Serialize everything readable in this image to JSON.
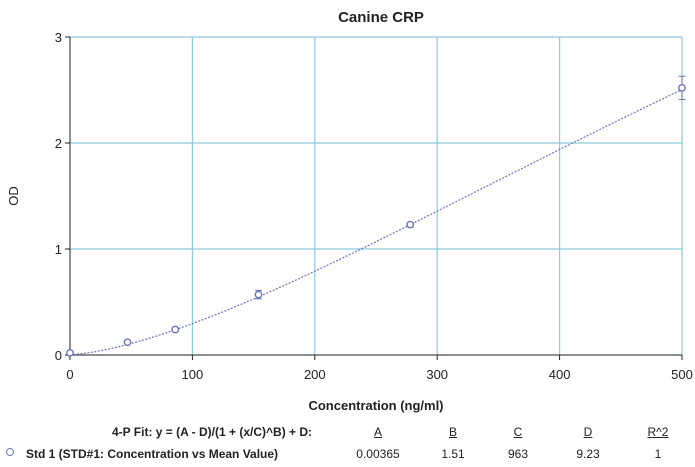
{
  "chart_data": {
    "type": "scatter",
    "title": "Canine CRP",
    "xlabel": "Concentration (ng/ml)",
    "ylabel": "OD",
    "xlim": [
      0,
      500
    ],
    "ylim": [
      0,
      3
    ],
    "x_ticks": [
      "0",
      "100",
      "200",
      "300",
      "400",
      "500"
    ],
    "y_ticks": [
      "0",
      "1",
      "2",
      "3"
    ],
    "grid": true,
    "series": [
      {
        "name": "Std 1 (STD#1: Concentration vs Mean Value)",
        "x": [
          0,
          47,
          86,
          154,
          278,
          500
        ],
        "y": [
          0.02,
          0.12,
          0.24,
          0.57,
          1.23,
          2.52
        ],
        "err": [
          0.005,
          0.01,
          0.015,
          0.04,
          0.02,
          0.11
        ],
        "color": "#6b73b8"
      }
    ],
    "fit": {
      "A": 0.00365,
      "B": 1.51,
      "C": 963,
      "D": 9.23,
      "color": "#6b73b8"
    }
  },
  "fit_table": {
    "header": "4-P Fit:  y = (A - D)/(1 + (x/C)^B) + D:",
    "col_A": "A",
    "col_B": "B",
    "col_C": "C",
    "col_D": "D",
    "col_R2": "R^2",
    "row_label": "Std 1 (STD#1: Concentration vs Mean Value)",
    "val_A": "0.00365",
    "val_B": "1.51",
    "val_C": "963",
    "val_D": "9.23",
    "val_R2": "1"
  },
  "colors": {
    "grid": "#8ec9e0",
    "series": "#6b73b8",
    "axis": "#222222"
  }
}
